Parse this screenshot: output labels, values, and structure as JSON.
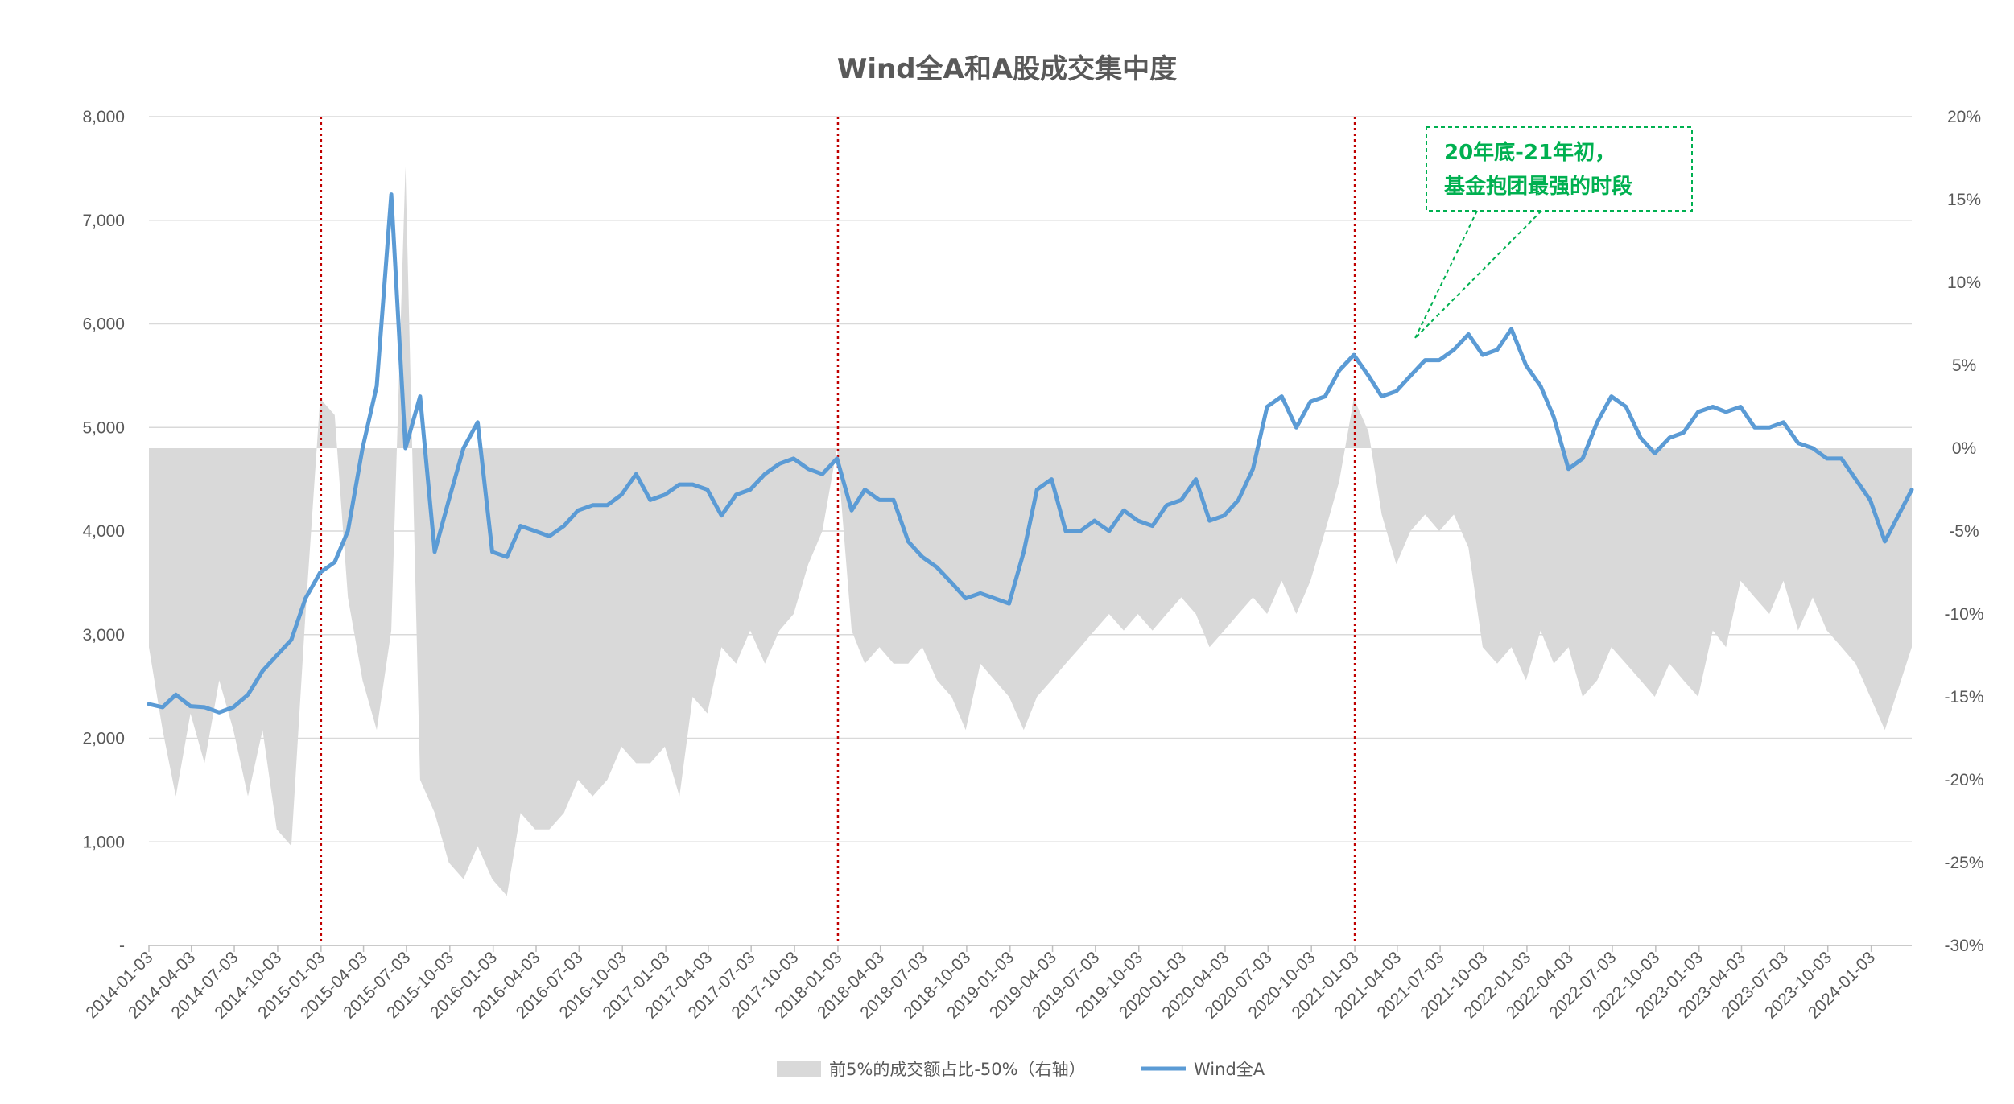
{
  "chart_data": {
    "type": "line",
    "title": "Wind全A和A股成交集中度",
    "colors": {
      "line": "#5B9BD5",
      "area": "#D9D9D9",
      "vline": "#C00000",
      "callout": "#00B050",
      "grid": "#D9D9D9",
      "text": "#595959"
    },
    "y_left": {
      "ylim": [
        0,
        8000
      ],
      "ticks": [
        "-",
        "1,000",
        "2,000",
        "3,000",
        "4,000",
        "5,000",
        "6,000",
        "7,000",
        "8,000"
      ]
    },
    "y_right": {
      "ylim": [
        -30,
        20
      ],
      "ticks": [
        "-30%",
        "-25%",
        "-20%",
        "-15%",
        "-10%",
        "-5%",
        "0%",
        "5%",
        "10%",
        "15%",
        "20%"
      ]
    },
    "x_range": [
      "2014-01-03",
      "2024-03-29"
    ],
    "x_tick_labels": [
      "2014-01-03",
      "2014-04-03",
      "2014-07-03",
      "2014-10-03",
      "2015-01-03",
      "2015-04-03",
      "2015-07-03",
      "2015-10-03",
      "2016-01-03",
      "2016-04-03",
      "2016-07-03",
      "2016-10-03",
      "2017-01-03",
      "2017-04-03",
      "2017-07-03",
      "2017-10-03",
      "2018-01-03",
      "2018-04-03",
      "2018-07-03",
      "2018-10-03",
      "2019-01-03",
      "2019-04-03",
      "2019-07-03",
      "2019-10-03",
      "2020-01-03",
      "2020-04-03",
      "2020-07-03",
      "2020-10-03",
      "2021-01-03",
      "2021-04-03",
      "2021-07-03",
      "2021-10-03",
      "2022-01-03",
      "2022-04-03",
      "2022-07-03",
      "2022-10-03",
      "2023-01-03",
      "2023-04-03",
      "2023-07-03",
      "2023-10-03",
      "2024-01-03"
    ],
    "vertical_lines": [
      "2015-01-03",
      "2018-01-03",
      "2021-01-03"
    ],
    "series": [
      {
        "name": "Wind全A",
        "type": "line",
        "axis": "left",
        "points": [
          [
            "2014-01-03",
            2330
          ],
          [
            "2014-02-01",
            2300
          ],
          [
            "2014-03-01",
            2420
          ],
          [
            "2014-04-01",
            2310
          ],
          [
            "2014-05-01",
            2300
          ],
          [
            "2014-06-01",
            2250
          ],
          [
            "2014-07-01",
            2300
          ],
          [
            "2014-08-01",
            2420
          ],
          [
            "2014-09-01",
            2650
          ],
          [
            "2014-10-01",
            2800
          ],
          [
            "2014-11-01",
            2950
          ],
          [
            "2014-12-01",
            3350
          ],
          [
            "2015-01-01",
            3600
          ],
          [
            "2015-02-01",
            3700
          ],
          [
            "2015-03-01",
            4000
          ],
          [
            "2015-04-01",
            4800
          ],
          [
            "2015-05-01",
            5400
          ],
          [
            "2015-06-01",
            7250
          ],
          [
            "2015-07-01",
            4800
          ],
          [
            "2015-08-01",
            5300
          ],
          [
            "2015-09-01",
            3800
          ],
          [
            "2015-10-01",
            4300
          ],
          [
            "2015-11-01",
            4800
          ],
          [
            "2015-12-01",
            5050
          ],
          [
            "2016-01-01",
            3800
          ],
          [
            "2016-02-01",
            3750
          ],
          [
            "2016-03-01",
            4050
          ],
          [
            "2016-04-01",
            4000
          ],
          [
            "2016-05-01",
            3950
          ],
          [
            "2016-06-01",
            4050
          ],
          [
            "2016-07-01",
            4200
          ],
          [
            "2016-08-01",
            4250
          ],
          [
            "2016-09-01",
            4250
          ],
          [
            "2016-10-01",
            4350
          ],
          [
            "2016-11-01",
            4550
          ],
          [
            "2016-12-01",
            4300
          ],
          [
            "2017-01-01",
            4350
          ],
          [
            "2017-02-01",
            4450
          ],
          [
            "2017-03-01",
            4450
          ],
          [
            "2017-04-01",
            4400
          ],
          [
            "2017-05-01",
            4150
          ],
          [
            "2017-06-01",
            4350
          ],
          [
            "2017-07-01",
            4400
          ],
          [
            "2017-08-01",
            4550
          ],
          [
            "2017-09-01",
            4650
          ],
          [
            "2017-10-01",
            4700
          ],
          [
            "2017-11-01",
            4600
          ],
          [
            "2017-12-01",
            4550
          ],
          [
            "2018-01-01",
            4700
          ],
          [
            "2018-02-01",
            4200
          ],
          [
            "2018-03-01",
            4400
          ],
          [
            "2018-04-01",
            4300
          ],
          [
            "2018-05-01",
            4300
          ],
          [
            "2018-06-01",
            3900
          ],
          [
            "2018-07-01",
            3750
          ],
          [
            "2018-08-01",
            3650
          ],
          [
            "2018-09-01",
            3500
          ],
          [
            "2018-10-01",
            3350
          ],
          [
            "2018-11-01",
            3400
          ],
          [
            "2019-01-01",
            3300
          ],
          [
            "2019-02-01",
            3800
          ],
          [
            "2019-03-01",
            4400
          ],
          [
            "2019-04-01",
            4500
          ],
          [
            "2019-05-01",
            4000
          ],
          [
            "2019-06-01",
            4000
          ],
          [
            "2019-07-01",
            4100
          ],
          [
            "2019-08-01",
            4000
          ],
          [
            "2019-09-01",
            4200
          ],
          [
            "2019-10-01",
            4100
          ],
          [
            "2019-11-01",
            4050
          ],
          [
            "2019-12-01",
            4250
          ],
          [
            "2020-01-01",
            4300
          ],
          [
            "2020-02-01",
            4500
          ],
          [
            "2020-03-01",
            4100
          ],
          [
            "2020-04-01",
            4150
          ],
          [
            "2020-05-01",
            4300
          ],
          [
            "2020-06-01",
            4600
          ],
          [
            "2020-07-01",
            5200
          ],
          [
            "2020-08-01",
            5300
          ],
          [
            "2020-09-01",
            5000
          ],
          [
            "2020-10-01",
            5250
          ],
          [
            "2020-11-01",
            5300
          ],
          [
            "2020-12-01",
            5550
          ],
          [
            "2021-01-01",
            5700
          ],
          [
            "2021-02-01",
            5500
          ],
          [
            "2021-03-01",
            5300
          ],
          [
            "2021-04-01",
            5350
          ],
          [
            "2021-05-01",
            5500
          ],
          [
            "2021-06-01",
            5650
          ],
          [
            "2021-07-01",
            5650
          ],
          [
            "2021-08-01",
            5750
          ],
          [
            "2021-09-01",
            5900
          ],
          [
            "2021-10-01",
            5700
          ],
          [
            "2021-11-01",
            5750
          ],
          [
            "2021-12-01",
            5950
          ],
          [
            "2022-01-01",
            5600
          ],
          [
            "2022-02-01",
            5400
          ],
          [
            "2022-03-01",
            5100
          ],
          [
            "2022-04-01",
            4600
          ],
          [
            "2022-05-01",
            4700
          ],
          [
            "2022-06-01",
            5050
          ],
          [
            "2022-07-01",
            5300
          ],
          [
            "2022-08-01",
            5200
          ],
          [
            "2022-09-01",
            4900
          ],
          [
            "2022-10-01",
            4750
          ],
          [
            "2022-11-01",
            4900
          ],
          [
            "2022-12-01",
            4950
          ],
          [
            "2023-01-01",
            5150
          ],
          [
            "2023-02-01",
            5200
          ],
          [
            "2023-03-01",
            5150
          ],
          [
            "2023-04-01",
            5200
          ],
          [
            "2023-05-01",
            5000
          ],
          [
            "2023-06-01",
            5000
          ],
          [
            "2023-07-01",
            5050
          ],
          [
            "2023-08-01",
            4850
          ],
          [
            "2023-09-01",
            4800
          ],
          [
            "2023-10-01",
            4700
          ],
          [
            "2023-11-01",
            4700
          ],
          [
            "2023-12-01",
            4500
          ],
          [
            "2024-01-01",
            4300
          ],
          [
            "2024-02-01",
            3900
          ],
          [
            "2024-03-29",
            4400
          ]
        ]
      },
      {
        "name": "前5%的成交额占比-50%（右轴）",
        "type": "area",
        "axis": "right",
        "baseline": 0,
        "points": [
          [
            "2014-01-03",
            -12
          ],
          [
            "2014-02-01",
            -17
          ],
          [
            "2014-03-01",
            -21
          ],
          [
            "2014-04-01",
            -16
          ],
          [
            "2014-05-01",
            -19
          ],
          [
            "2014-06-01",
            -14
          ],
          [
            "2014-07-01",
            -17
          ],
          [
            "2014-08-01",
            -21
          ],
          [
            "2014-09-01",
            -17
          ],
          [
            "2014-10-01",
            -23
          ],
          [
            "2014-11-01",
            -24
          ],
          [
            "2014-12-01",
            -10
          ],
          [
            "2015-01-01",
            3
          ],
          [
            "2015-02-01",
            2
          ],
          [
            "2015-03-01",
            -9
          ],
          [
            "2015-04-01",
            -14
          ],
          [
            "2015-05-01",
            -17
          ],
          [
            "2015-06-01",
            -11
          ],
          [
            "2015-07-01",
            17
          ],
          [
            "2015-08-01",
            -20
          ],
          [
            "2015-09-01",
            -22
          ],
          [
            "2015-10-01",
            -25
          ],
          [
            "2015-11-01",
            -26
          ],
          [
            "2015-12-01",
            -24
          ],
          [
            "2016-01-01",
            -26
          ],
          [
            "2016-02-01",
            -27
          ],
          [
            "2016-03-01",
            -22
          ],
          [
            "2016-04-01",
            -23
          ],
          [
            "2016-05-01",
            -23
          ],
          [
            "2016-06-01",
            -22
          ],
          [
            "2016-07-01",
            -20
          ],
          [
            "2016-08-01",
            -21
          ],
          [
            "2016-09-01",
            -20
          ],
          [
            "2016-10-01",
            -18
          ],
          [
            "2016-11-01",
            -19
          ],
          [
            "2016-12-01",
            -19
          ],
          [
            "2017-01-01",
            -18
          ],
          [
            "2017-02-01",
            -21
          ],
          [
            "2017-03-01",
            -15
          ],
          [
            "2017-04-01",
            -16
          ],
          [
            "2017-05-01",
            -12
          ],
          [
            "2017-06-01",
            -13
          ],
          [
            "2017-07-01",
            -11
          ],
          [
            "2017-08-01",
            -13
          ],
          [
            "2017-09-01",
            -11
          ],
          [
            "2017-10-01",
            -10
          ],
          [
            "2017-11-01",
            -7
          ],
          [
            "2017-12-01",
            -5
          ],
          [
            "2018-01-01",
            0
          ],
          [
            "2018-02-01",
            -11
          ],
          [
            "2018-03-01",
            -13
          ],
          [
            "2018-04-01",
            -12
          ],
          [
            "2018-05-01",
            -13
          ],
          [
            "2018-06-01",
            -13
          ],
          [
            "2018-07-01",
            -12
          ],
          [
            "2018-08-01",
            -14
          ],
          [
            "2018-09-01",
            -15
          ],
          [
            "2018-10-01",
            -17
          ],
          [
            "2018-11-01",
            -13
          ],
          [
            "2019-01-01",
            -15
          ],
          [
            "2019-02-01",
            -17
          ],
          [
            "2019-03-01",
            -15
          ],
          [
            "2019-04-01",
            -14
          ],
          [
            "2019-05-01",
            -13
          ],
          [
            "2019-06-01",
            -12
          ],
          [
            "2019-07-01",
            -11
          ],
          [
            "2019-08-01",
            -10
          ],
          [
            "2019-09-01",
            -11
          ],
          [
            "2019-10-01",
            -10
          ],
          [
            "2019-11-01",
            -11
          ],
          [
            "2019-12-01",
            -10
          ],
          [
            "2020-01-01",
            -9
          ],
          [
            "2020-02-01",
            -10
          ],
          [
            "2020-03-01",
            -12
          ],
          [
            "2020-04-01",
            -11
          ],
          [
            "2020-05-01",
            -10
          ],
          [
            "2020-06-01",
            -9
          ],
          [
            "2020-07-01",
            -10
          ],
          [
            "2020-08-01",
            -8
          ],
          [
            "2020-09-01",
            -10
          ],
          [
            "2020-10-01",
            -8
          ],
          [
            "2020-11-01",
            -5
          ],
          [
            "2020-12-01",
            -2
          ],
          [
            "2021-01-01",
            3
          ],
          [
            "2021-02-01",
            1
          ],
          [
            "2021-03-01",
            -4
          ],
          [
            "2021-04-01",
            -7
          ],
          [
            "2021-05-01",
            -5
          ],
          [
            "2021-06-01",
            -4
          ],
          [
            "2021-07-01",
            -5
          ],
          [
            "2021-08-01",
            -4
          ],
          [
            "2021-09-01",
            -6
          ],
          [
            "2021-10-01",
            -12
          ],
          [
            "2021-11-01",
            -13
          ],
          [
            "2021-12-01",
            -12
          ],
          [
            "2022-01-01",
            -14
          ],
          [
            "2022-02-01",
            -11
          ],
          [
            "2022-03-01",
            -13
          ],
          [
            "2022-04-01",
            -12
          ],
          [
            "2022-05-01",
            -15
          ],
          [
            "2022-06-01",
            -14
          ],
          [
            "2022-07-01",
            -12
          ],
          [
            "2022-08-01",
            -13
          ],
          [
            "2022-09-01",
            -14
          ],
          [
            "2022-10-01",
            -15
          ],
          [
            "2022-11-01",
            -13
          ],
          [
            "2022-12-01",
            -14
          ],
          [
            "2023-01-01",
            -15
          ],
          [
            "2023-02-01",
            -11
          ],
          [
            "2023-03-01",
            -12
          ],
          [
            "2023-04-01",
            -8
          ],
          [
            "2023-05-01",
            -9
          ],
          [
            "2023-06-01",
            -10
          ],
          [
            "2023-07-01",
            -8
          ],
          [
            "2023-08-01",
            -11
          ],
          [
            "2023-09-01",
            -9
          ],
          [
            "2023-10-01",
            -11
          ],
          [
            "2023-11-01",
            -12
          ],
          [
            "2023-12-01",
            -13
          ],
          [
            "2024-01-01",
            -15
          ],
          [
            "2024-02-01",
            -17
          ],
          [
            "2024-03-29",
            -12
          ]
        ]
      }
    ],
    "legend": {
      "placement": "bottom",
      "items": [
        "前5%的成交额占比-50%（右轴）",
        "Wind全A"
      ]
    },
    "annotation": {
      "lines": [
        "20年底-21年初，",
        "基金抱团最强的时段"
      ],
      "points_to": "2021-01-03"
    }
  }
}
